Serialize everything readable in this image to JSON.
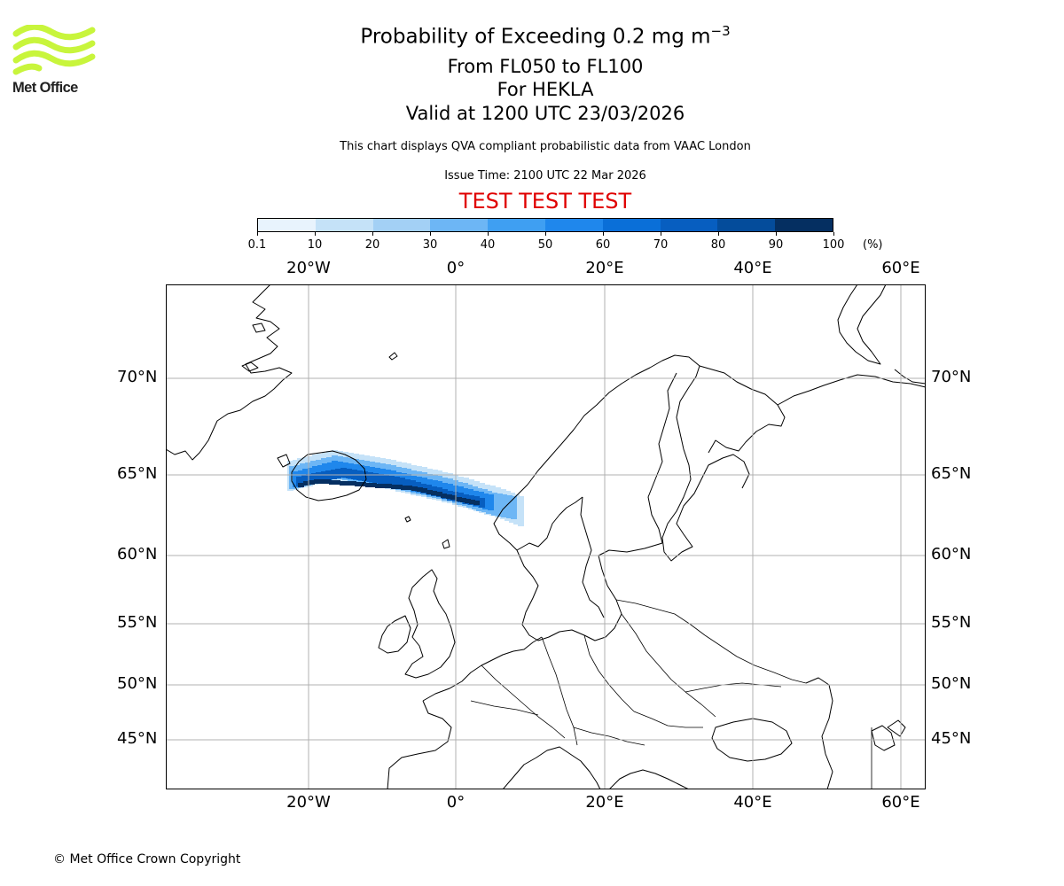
{
  "logo": {
    "text": "Met Office",
    "color": "#c8f53c"
  },
  "title": {
    "main": "Probability of Exceeding 0.2 mg m",
    "superscript": "−3",
    "line2": "From FL050 to FL100",
    "line3": "For HEKLA",
    "line4": "Valid at 1200 UTC 23/03/2026"
  },
  "subtitle": "This chart displays QVA compliant probabilistic data from VAAC London",
  "issue_time": "Issue Time: 2100 UTC 22 Mar 2026",
  "test_banner": "TEST TEST TEST",
  "colorbar": {
    "ticks": [
      "0.1",
      "10",
      "20",
      "30",
      "40",
      "50",
      "60",
      "70",
      "80",
      "90",
      "100"
    ],
    "unit": "(%)",
    "colors": [
      "#e8f3fd",
      "#c5e2f8",
      "#a3d0f5",
      "#6db6f5",
      "#3f9ff2",
      "#1f87ec",
      "#0a6fd8",
      "#075ec0",
      "#044c9b",
      "#052f61"
    ]
  },
  "map": {
    "lon_labels": [
      "20°W",
      "0°",
      "20°E",
      "40°E",
      "60°E"
    ],
    "lat_labels": [
      "70°N",
      "65°N",
      "60°N",
      "55°N",
      "50°N",
      "45°N"
    ],
    "gridline_color": "#b0b0b0"
  },
  "copyright": "© Met Office Crown Copyright"
}
